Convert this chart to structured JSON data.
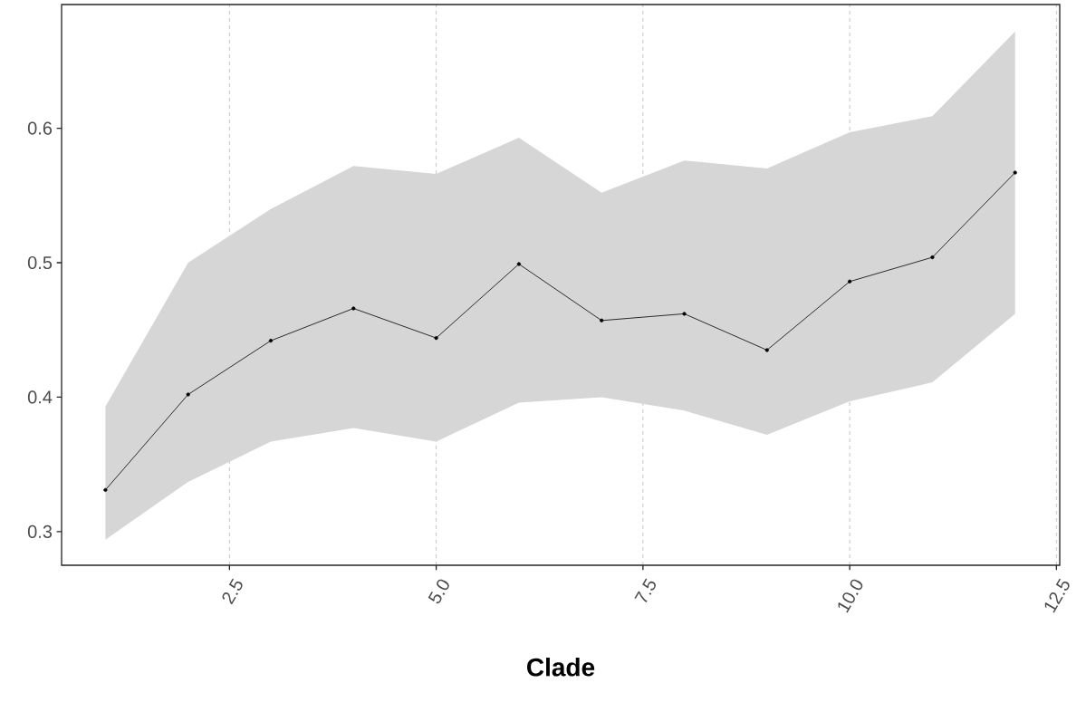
{
  "chart_data": {
    "type": "line",
    "xlabel": "Clade",
    "x": [
      1,
      2,
      3,
      4,
      5,
      6,
      7,
      8,
      9,
      10,
      11,
      12
    ],
    "series": [
      {
        "color": "#000000",
        "values": [
          0.331,
          0.402,
          0.442,
          0.466,
          0.444,
          0.499,
          0.457,
          0.462,
          0.435,
          0.486,
          0.504,
          0.567
        ],
        "lower": [
          0.294,
          0.337,
          0.367,
          0.377,
          0.367,
          0.396,
          0.4,
          0.39,
          0.372,
          0.397,
          0.411,
          0.462
        ],
        "upper": [
          0.393,
          0.5,
          0.54,
          0.572,
          0.566,
          0.593,
          0.552,
          0.576,
          0.57,
          0.597,
          0.609,
          0.672
        ]
      }
    ],
    "xlim": [
      0.47,
      12.54
    ],
    "ylim": [
      0.275,
      0.692
    ],
    "xticks": [
      {
        "value": 2.5,
        "label": "2.5"
      },
      {
        "value": 5,
        "label": "5.0"
      },
      {
        "value": 7.5,
        "label": "7.5"
      },
      {
        "value": 10,
        "label": "10.0"
      },
      {
        "value": 12.5,
        "label": "12.5"
      }
    ],
    "yticks": [
      0.3,
      0.4,
      0.5,
      0.6
    ],
    "grid": "x",
    "marker": "circle"
  }
}
